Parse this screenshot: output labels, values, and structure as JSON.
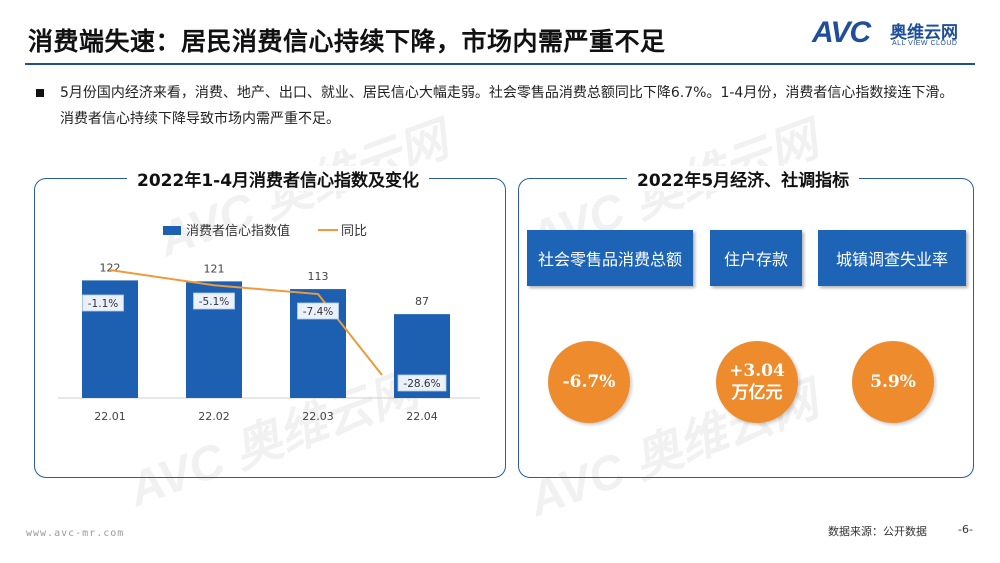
{
  "header": {
    "title": "消费端失速：居民消费信心持续下降，市场内需严重不足",
    "logo_mark": "AVC",
    "logo_cn": "奥维云网",
    "logo_en": "ALL VIEW CLOUD"
  },
  "bullet": {
    "text": "5月份国内经济来看，消费、地产、出口、就业、居民信心大幅走弱。社会零售品消费总额同比下降6.7%。1-4月份，消费者信心指数接连下滑。消费者信心持续下降导致市场内需严重不足。"
  },
  "left_panel": {
    "title": "2022年1-4月消费者信心指数及变化"
  },
  "chart_data": {
    "type": "bar",
    "categories": [
      "22.01",
      "22.02",
      "22.03",
      "22.04"
    ],
    "series": [
      {
        "name": "消费者信心指数值",
        "type": "bar",
        "values": [
          122,
          121,
          113,
          87
        ],
        "labels": [
          "122",
          "121",
          "113",
          "87"
        ],
        "color": "#1d5fb0"
      },
      {
        "name": "同比",
        "type": "line",
        "values": [
          -1.1,
          -5.1,
          -7.4,
          -28.6
        ],
        "labels": [
          "-1.1%",
          "-5.1%",
          "-7.4%",
          "-28.6%"
        ],
        "color": "#ee9a3a"
      }
    ],
    "title": "2022年1-4月消费者信心指数及变化",
    "legend_position": "top",
    "grid": false
  },
  "right_panel": {
    "title": "2022年5月经济、社调指标",
    "indicators": [
      {
        "label": "社会零售品消费总额",
        "value_line1": "-6.7%",
        "value_line2": ""
      },
      {
        "label": "住户存款",
        "value_line1": "+3.04",
        "value_line2": "万亿元"
      },
      {
        "label": "城镇调查失业率",
        "value_line1": "5.9%",
        "value_line2": ""
      }
    ]
  },
  "footer": {
    "url": "www.avc-mr.com",
    "source": "数据来源：公开数据",
    "page": "-6-"
  },
  "colors": {
    "brand_blue": "#1f4e9a",
    "bar_blue": "#1d5fb0",
    "box_blue": "#1d64b6",
    "circle_orange": "#ee8b2d",
    "line_orange": "#ee9a3a"
  }
}
